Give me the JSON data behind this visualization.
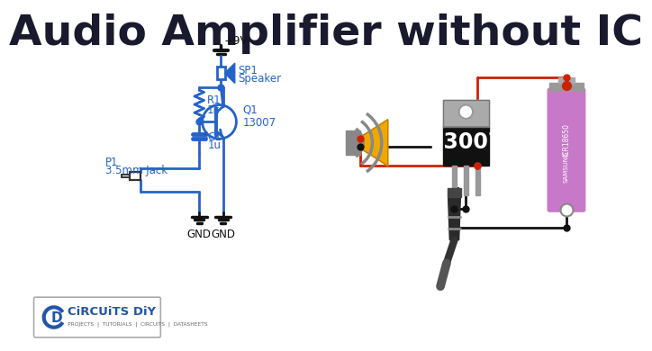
{
  "title": "Audio Amplifier without IC",
  "title_fontsize": 34,
  "title_fontweight": "bold",
  "title_color": "#1a1a2e",
  "bg_color": "#ffffff",
  "circuit_color": "#2563c7",
  "circuit_linewidth": 2.0,
  "label_color": "#2563c7",
  "label_fontsize": 8.5,
  "gnd_color": "#111111",
  "vcc_label": "+9V",
  "r1_label": "R1\n1k",
  "c1_label": "C1\n1u",
  "q1_label": "Q1\n13007",
  "p1_label": "P1\n3.5mm Jack",
  "sp1_label": "SP1\nSpeaker",
  "gnd1_label": "GND",
  "gnd2_label": "GND",
  "transistor_label": "13007",
  "wire_red": "#cc2200",
  "wire_black": "#111111",
  "speaker_cone_color": "#f0a800",
  "speaker_body_color": "#888888",
  "transistor_body_color": "#111111",
  "transistor_tab_color": "#aaaaaa",
  "battery_body_color": "#c878c8",
  "battery_top_color": "#888888",
  "battery_bottom_color": "#888888",
  "jack_color": "#333333",
  "logo_border": "#aaaaaa",
  "logo_text_color": "#2255aa",
  "logo_sub_color": "#666666"
}
